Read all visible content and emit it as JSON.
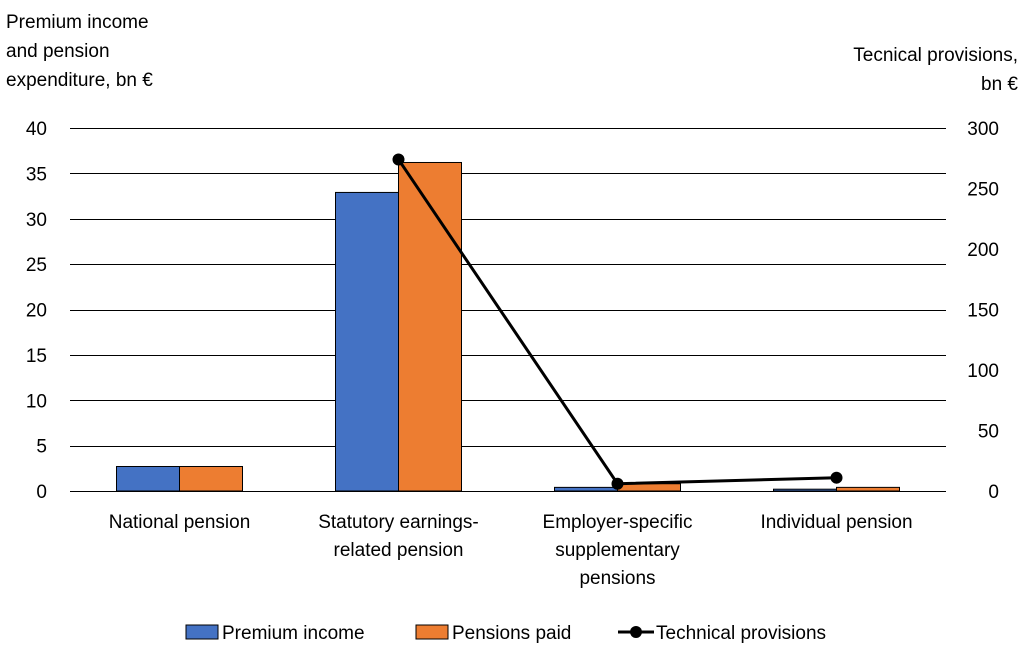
{
  "chart_data": {
    "type": "bar",
    "categories": [
      [
        "National pension"
      ],
      [
        "Statutory earnings-",
        "related pension"
      ],
      [
        "Employer-specific",
        "supplementary",
        "pensions"
      ],
      [
        "Individual pension"
      ]
    ],
    "series": [
      {
        "name": "Premium income",
        "type": "bar",
        "axis": "left",
        "color": "#4472C4",
        "values": [
          2.7,
          32.9,
          0.4,
          0.2
        ]
      },
      {
        "name": "Pensions paid",
        "type": "bar",
        "axis": "left",
        "color": "#ED7D31",
        "values": [
          2.7,
          36.2,
          0.8,
          0.4
        ]
      },
      {
        "name": "Technical provisions",
        "type": "line",
        "axis": "right",
        "color": "#000000",
        "values": [
          null,
          274,
          6,
          11
        ]
      }
    ],
    "ylabel_left": [
      "Premium income",
      "and pension",
      "expenditure, bn €"
    ],
    "ylabel_right": [
      "Tecnical provisions,",
      "bn €"
    ],
    "ylim_left": [
      0,
      40
    ],
    "yticks_left": [
      0,
      5,
      10,
      15,
      20,
      25,
      30,
      35,
      40
    ],
    "ylim_right": [
      0,
      300
    ],
    "yticks_right": [
      0,
      50,
      100,
      150,
      200,
      250,
      300
    ],
    "grid": true,
    "legend_position": "bottom"
  }
}
